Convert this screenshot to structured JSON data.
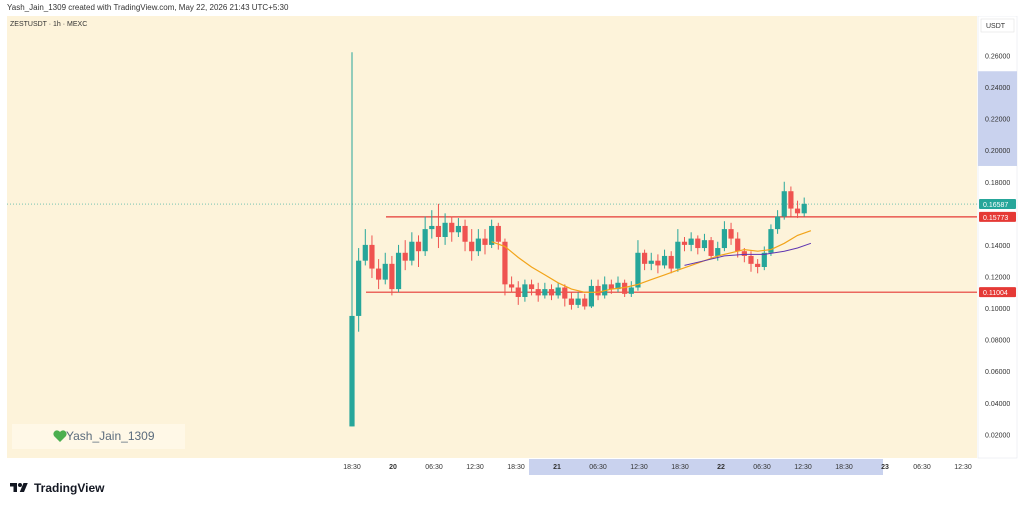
{
  "header": {
    "created_text": "Yash_Jain_1309 created with TradingView.com, May 22, 2026 21:43 UTC+5:30"
  },
  "symbol": {
    "label": "ZESTUSDT · 1h · MEXC"
  },
  "currency_label": "USDT",
  "watermark": {
    "text": "Yash_Jain_1309",
    "icon": "green-heart-icon"
  },
  "footer": {
    "brand": "TradingView",
    "icon": "tradingview-logo-icon"
  },
  "colors": {
    "background": "#fdf3da",
    "up": "#26a69a",
    "down": "#ef5350",
    "level_line": "#e53935",
    "ma_fast": "#f2a41a",
    "ma_slow": "#5e35b1",
    "highlight": "#c9d2ee"
  },
  "chart_data": {
    "type": "candlestick",
    "y_axis_ticks": [
      "0.26000",
      "0.24000",
      "0.22000",
      "0.20000",
      "0.18000",
      "0.14000",
      "0.12000",
      "0.10000",
      "0.08000",
      "0.06000",
      "0.04000",
      "0.02000"
    ],
    "ylim": [
      0.005,
      0.285
    ],
    "x_axis_ticks": [
      "18:30",
      "20",
      "06:30",
      "12:30",
      "18:30",
      "21",
      "06:30",
      "12:30",
      "18:30",
      "22",
      "06:30",
      "12:30",
      "18:30",
      "23",
      "06:30",
      "12:30"
    ],
    "price_labels": [
      {
        "value": "0.16587",
        "kind": "current"
      },
      {
        "value": "0.15773",
        "kind": "level"
      },
      {
        "value": "0.11004",
        "kind": "level"
      }
    ],
    "levels": [
      0.15773,
      0.11004
    ],
    "current_price": 0.16587,
    "candles": [
      [
        0.025,
        0.095,
        0.025,
        0.262
      ],
      [
        0.095,
        0.13,
        0.085,
        0.138
      ],
      [
        0.13,
        0.14,
        0.127,
        0.15
      ],
      [
        0.14,
        0.125,
        0.119,
        0.146
      ],
      [
        0.125,
        0.118,
        0.112,
        0.131
      ],
      [
        0.118,
        0.128,
        0.115,
        0.135
      ],
      [
        0.128,
        0.112,
        0.108,
        0.133
      ],
      [
        0.112,
        0.135,
        0.11,
        0.14
      ],
      [
        0.135,
        0.13,
        0.124,
        0.143
      ],
      [
        0.13,
        0.142,
        0.127,
        0.148
      ],
      [
        0.142,
        0.136,
        0.126,
        0.146
      ],
      [
        0.136,
        0.15,
        0.133,
        0.158
      ],
      [
        0.15,
        0.152,
        0.144,
        0.162
      ],
      [
        0.152,
        0.145,
        0.138,
        0.166
      ],
      [
        0.145,
        0.154,
        0.14,
        0.16
      ],
      [
        0.154,
        0.148,
        0.142,
        0.158
      ],
      [
        0.148,
        0.152,
        0.145,
        0.157
      ],
      [
        0.152,
        0.142,
        0.136,
        0.156
      ],
      [
        0.142,
        0.136,
        0.13,
        0.15
      ],
      [
        0.136,
        0.144,
        0.133,
        0.15
      ],
      [
        0.144,
        0.14,
        0.134,
        0.15
      ],
      [
        0.14,
        0.152,
        0.138,
        0.156
      ],
      [
        0.152,
        0.142,
        0.137,
        0.154
      ],
      [
        0.142,
        0.115,
        0.108,
        0.144
      ],
      [
        0.115,
        0.113,
        0.11,
        0.12
      ],
      [
        0.113,
        0.107,
        0.102,
        0.117
      ],
      [
        0.107,
        0.115,
        0.104,
        0.118
      ],
      [
        0.115,
        0.112,
        0.108,
        0.118
      ],
      [
        0.112,
        0.108,
        0.104,
        0.116
      ],
      [
        0.108,
        0.112,
        0.106,
        0.116
      ],
      [
        0.112,
        0.108,
        0.105,
        0.115
      ],
      [
        0.108,
        0.113,
        0.106,
        0.116
      ],
      [
        0.113,
        0.106,
        0.101,
        0.115
      ],
      [
        0.106,
        0.102,
        0.099,
        0.11
      ],
      [
        0.102,
        0.106,
        0.1,
        0.11
      ],
      [
        0.106,
        0.101,
        0.099,
        0.109
      ],
      [
        0.101,
        0.114,
        0.1,
        0.118
      ],
      [
        0.114,
        0.108,
        0.105,
        0.118
      ],
      [
        0.108,
        0.115,
        0.106,
        0.12
      ],
      [
        0.115,
        0.112,
        0.109,
        0.118
      ],
      [
        0.112,
        0.116,
        0.11,
        0.12
      ],
      [
        0.116,
        0.109,
        0.107,
        0.118
      ],
      [
        0.109,
        0.113,
        0.107,
        0.117
      ],
      [
        0.113,
        0.135,
        0.111,
        0.143
      ],
      [
        0.135,
        0.128,
        0.124,
        0.137
      ],
      [
        0.128,
        0.13,
        0.124,
        0.135
      ],
      [
        0.13,
        0.127,
        0.122,
        0.134
      ],
      [
        0.127,
        0.133,
        0.125,
        0.137
      ],
      [
        0.133,
        0.125,
        0.122,
        0.136
      ],
      [
        0.125,
        0.142,
        0.123,
        0.15
      ],
      [
        0.142,
        0.14,
        0.136,
        0.145
      ],
      [
        0.14,
        0.144,
        0.136,
        0.148
      ],
      [
        0.144,
        0.138,
        0.134,
        0.146
      ],
      [
        0.138,
        0.143,
        0.136,
        0.147
      ],
      [
        0.143,
        0.133,
        0.131,
        0.145
      ],
      [
        0.133,
        0.138,
        0.13,
        0.142
      ],
      [
        0.138,
        0.15,
        0.136,
        0.155
      ],
      [
        0.15,
        0.144,
        0.14,
        0.154
      ],
      [
        0.144,
        0.136,
        0.132,
        0.148
      ],
      [
        0.136,
        0.133,
        0.129,
        0.138
      ],
      [
        0.133,
        0.128,
        0.123,
        0.136
      ],
      [
        0.128,
        0.126,
        0.122,
        0.131
      ],
      [
        0.126,
        0.135,
        0.124,
        0.139
      ],
      [
        0.135,
        0.15,
        0.133,
        0.153
      ],
      [
        0.15,
        0.158,
        0.147,
        0.162
      ],
      [
        0.158,
        0.174,
        0.156,
        0.18
      ],
      [
        0.174,
        0.163,
        0.158,
        0.177
      ],
      [
        0.163,
        0.16,
        0.157,
        0.168
      ],
      [
        0.16,
        0.166,
        0.158,
        0.17
      ]
    ],
    "ma_fast": [
      [
        21,
        0.142
      ],
      [
        23,
        0.139
      ],
      [
        25,
        0.132
      ],
      [
        27,
        0.126
      ],
      [
        29,
        0.121
      ],
      [
        31,
        0.116
      ],
      [
        33,
        0.112
      ],
      [
        35,
        0.11
      ],
      [
        37,
        0.11
      ],
      [
        39,
        0.112
      ],
      [
        41,
        0.113
      ],
      [
        43,
        0.115
      ],
      [
        45,
        0.118
      ],
      [
        47,
        0.121
      ],
      [
        49,
        0.124
      ],
      [
        51,
        0.127
      ],
      [
        53,
        0.13
      ],
      [
        55,
        0.133
      ],
      [
        57,
        0.135
      ],
      [
        59,
        0.137
      ],
      [
        61,
        0.136
      ],
      [
        63,
        0.137
      ],
      [
        65,
        0.141
      ],
      [
        67,
        0.146
      ],
      [
        69,
        0.149
      ]
    ],
    "ma_slow": [
      [
        50,
        0.127
      ],
      [
        53,
        0.13
      ],
      [
        56,
        0.133
      ],
      [
        59,
        0.134
      ],
      [
        62,
        0.134
      ],
      [
        65,
        0.136
      ],
      [
        67,
        0.138
      ],
      [
        69,
        0.141
      ]
    ],
    "highlighted_ranges": {
      "time": [
        "21",
        "23"
      ],
      "price": [
        "0.25000",
        "0.19000"
      ]
    }
  }
}
